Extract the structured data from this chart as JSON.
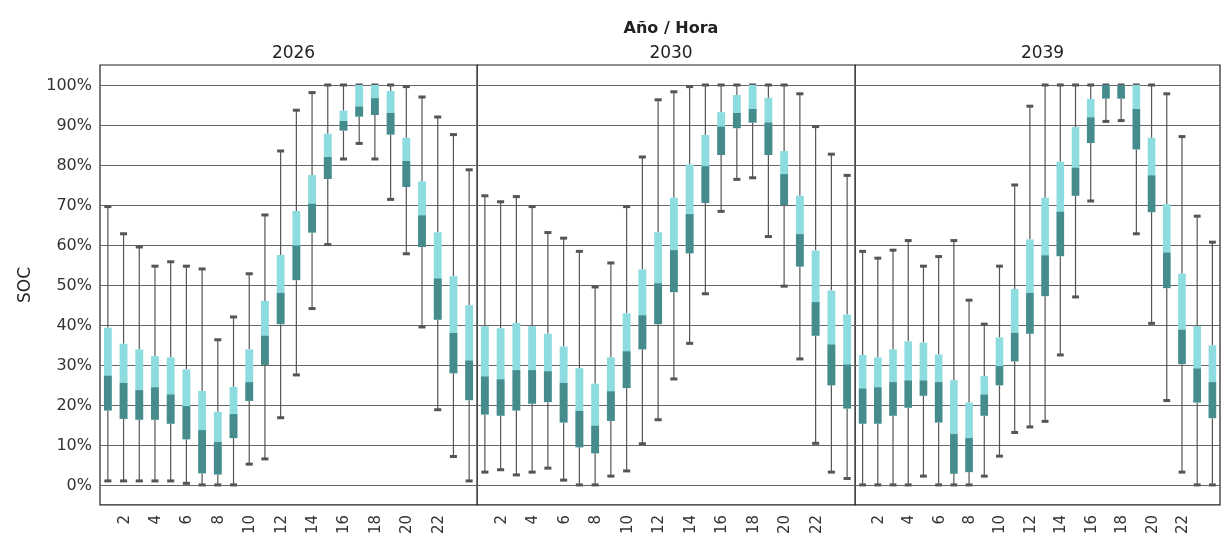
{
  "chart_data": [
    {
      "type": "box",
      "title": "2026",
      "ylabel": "SOC",
      "categories": [
        null,
        "2",
        null,
        "4",
        null,
        "6",
        null,
        "8",
        null,
        "10",
        null,
        "12",
        null,
        "14",
        null,
        "16",
        null,
        "18",
        null,
        "20",
        null,
        "22",
        null,
        null
      ],
      "color": "#8ddcdf",
      "ylim": [
        -5,
        105
      ],
      "yticks": [
        {
          "value": 0,
          "label": "0%"
        },
        {
          "value": 10,
          "label": "10%"
        },
        {
          "value": 20,
          "label": "20%"
        },
        {
          "value": 30,
          "label": "30%"
        },
        {
          "value": 40,
          "label": "40%"
        },
        {
          "value": 50,
          "label": "50%"
        },
        {
          "value": 60,
          "label": "60%"
        },
        {
          "value": 70,
          "label": "70%"
        },
        {
          "value": 80,
          "label": "80%"
        },
        {
          "value": 90,
          "label": "90%"
        },
        {
          "value": 100,
          "label": "100%"
        }
      ],
      "grid": "y",
      "boxes": [
        {
          "low": 1,
          "q1": 18.6,
          "median": 27.3,
          "q3": 39.3,
          "high": 69.6
        },
        {
          "low": 1,
          "q1": 16.5,
          "median": 25.5,
          "q3": 35.3,
          "high": 62.8
        },
        {
          "low": 1,
          "q1": 16.3,
          "median": 23.7,
          "q3": 33.9,
          "high": 59.5
        },
        {
          "low": 1,
          "q1": 16.3,
          "median": 24.4,
          "q3": 32.2,
          "high": 54.7
        },
        {
          "low": 1,
          "q1": 15.3,
          "median": 22.6,
          "q3": 31.9,
          "high": 55.8
        },
        {
          "low": 0.4,
          "q1": 11.4,
          "median": 19.7,
          "q3": 28.9,
          "high": 54.7
        },
        {
          "low": 0,
          "q1": 2.9,
          "median": 13.7,
          "q3": 23.5,
          "high": 54
        },
        {
          "low": 0,
          "q1": 2.6,
          "median": 10.7,
          "q3": 18.3,
          "high": 36.3
        },
        {
          "low": 0,
          "q1": 11.7,
          "median": 17.7,
          "q3": 24.5,
          "high": 42
        },
        {
          "low": 5.2,
          "q1": 21,
          "median": 25.7,
          "q3": 33.9,
          "high": 52.8
        },
        {
          "low": 6.5,
          "q1": 30,
          "median": 37.3,
          "q3": 46,
          "high": 67.5
        },
        {
          "low": 16.8,
          "q1": 40.2,
          "median": 48,
          "q3": 57.5,
          "high": 83.5
        },
        {
          "low": 27.5,
          "q1": 51.2,
          "median": 59.9,
          "q3": 68.5,
          "high": 93.7
        },
        {
          "low": 44.1,
          "q1": 63.1,
          "median": 70.3,
          "q3": 77.5,
          "high": 98.1
        },
        {
          "low": 60.1,
          "q1": 76.5,
          "median": 82,
          "q3": 87.8,
          "high": 100
        },
        {
          "low": 81.5,
          "q1": 88.6,
          "median": 91,
          "q3": 93.6,
          "high": 100
        },
        {
          "low": 85.4,
          "q1": 92.1,
          "median": 94.6,
          "q3": 100,
          "high": 100
        },
        {
          "low": 81.5,
          "q1": 92.5,
          "median": 96.7,
          "q3": 100,
          "high": 100
        },
        {
          "low": 71.4,
          "q1": 87.6,
          "median": 93,
          "q3": 98.5,
          "high": 100
        },
        {
          "low": 57.8,
          "q1": 74.5,
          "median": 81,
          "q3": 86.8,
          "high": 99.6
        },
        {
          "low": 39.5,
          "q1": 59.5,
          "median": 67.4,
          "q3": 75.9,
          "high": 97
        },
        {
          "low": 18.8,
          "q1": 41.3,
          "median": 51.6,
          "q3": 63.2,
          "high": 92
        },
        {
          "low": 7.1,
          "q1": 27.9,
          "median": 38,
          "q3": 52.2,
          "high": 87.6
        },
        {
          "low": 1,
          "q1": 21.2,
          "median": 31.1,
          "q3": 44.9,
          "high": 78.8
        }
      ]
    },
    {
      "type": "box",
      "title": "2030",
      "xlabel": "Año / Hora",
      "tick_labels": "x",
      "categories": [
        null,
        "2",
        null,
        "4",
        null,
        "6",
        null,
        "8",
        null,
        "10",
        null,
        "12",
        null,
        "14",
        null,
        "16",
        null,
        "18",
        null,
        "20",
        null,
        "22",
        null,
        null
      ],
      "color": "#8ddcdf",
      "ylim": [
        -5,
        105
      ],
      "yticks": [
        0,
        10,
        20,
        30,
        40,
        50,
        60,
        70,
        80,
        90,
        100
      ],
      "grid": "y",
      "boxes": [
        {
          "low": 3.2,
          "q1": 17.6,
          "median": 27.1,
          "q3": 39.7,
          "high": 72.3
        },
        {
          "low": 3.8,
          "q1": 17.3,
          "median": 26.4,
          "q3": 39.2,
          "high": 70.8
        },
        {
          "low": 2.5,
          "q1": 18.6,
          "median": 28.7,
          "q3": 40.5,
          "high": 72.1
        },
        {
          "low": 3.2,
          "q1": 20.3,
          "median": 28.7,
          "q3": 39.7,
          "high": 69.6
        },
        {
          "low": 4.2,
          "q1": 20.7,
          "median": 28.4,
          "q3": 37.8,
          "high": 63.1
        },
        {
          "low": 1.2,
          "q1": 15.6,
          "median": 25.5,
          "q3": 34.6,
          "high": 61.7
        },
        {
          "low": 0,
          "q1": 9.4,
          "median": 18.5,
          "q3": 29.2,
          "high": 58.4
        },
        {
          "low": 0,
          "q1": 7.9,
          "median": 14.8,
          "q3": 25.3,
          "high": 49.5
        },
        {
          "low": 2.2,
          "q1": 16,
          "median": 23.4,
          "q3": 31.9,
          "high": 55.5
        },
        {
          "low": 3.5,
          "q1": 24.2,
          "median": 33.4,
          "q3": 42.9,
          "high": 69.6
        },
        {
          "low": 10.3,
          "q1": 33.9,
          "median": 42.4,
          "q3": 53.9,
          "high": 82
        },
        {
          "low": 16.3,
          "q1": 40.2,
          "median": 50.4,
          "q3": 63.2,
          "high": 96.3
        },
        {
          "low": 26.5,
          "q1": 48.2,
          "median": 58.7,
          "q3": 71.8,
          "high": 98.3
        },
        {
          "low": 35.4,
          "q1": 57.9,
          "median": 67.7,
          "q3": 80.1,
          "high": 99.6
        },
        {
          "low": 47.8,
          "q1": 70.5,
          "median": 79.7,
          "q3": 87.5,
          "high": 100
        },
        {
          "low": 68.4,
          "q1": 82.5,
          "median": 89.6,
          "q3": 93.2,
          "high": 100
        },
        {
          "low": 76.4,
          "q1": 89.2,
          "median": 93,
          "q3": 97.5,
          "high": 100
        },
        {
          "low": 76.8,
          "q1": 90.6,
          "median": 94,
          "q3": 100,
          "high": 100
        },
        {
          "low": 62.1,
          "q1": 82.5,
          "median": 90.6,
          "q3": 96.8,
          "high": 100
        },
        {
          "low": 49.7,
          "q1": 70,
          "median": 77.7,
          "q3": 83.5,
          "high": 100
        },
        {
          "low": 31.5,
          "q1": 54.6,
          "median": 62.7,
          "q3": 72.3,
          "high": 97.8
        },
        {
          "low": 10.4,
          "q1": 37.3,
          "median": 45.7,
          "q3": 58.6,
          "high": 89.6
        },
        {
          "low": 3.2,
          "q1": 24.9,
          "median": 35.1,
          "q3": 48.6,
          "high": 82.7
        },
        {
          "low": 1.6,
          "q1": 19.1,
          "median": 30.1,
          "q3": 42.6,
          "high": 77.4
        }
      ]
    },
    {
      "type": "box",
      "title": "2039",
      "tick_labels": "x",
      "categories": [
        null,
        "2",
        null,
        "4",
        null,
        "6",
        null,
        "8",
        null,
        "10",
        null,
        "12",
        null,
        "14",
        null,
        "16",
        null,
        "18",
        null,
        "20",
        null,
        "22",
        null,
        null
      ],
      "color": "#8ddcdf",
      "ylim": [
        -5,
        105
      ],
      "yticks": [
        0,
        10,
        20,
        30,
        40,
        50,
        60,
        70,
        80,
        90,
        100
      ],
      "grid": "y",
      "boxes": [
        {
          "low": 0,
          "q1": 15.3,
          "median": 24.1,
          "q3": 32.5,
          "high": 58.4
        },
        {
          "low": 0,
          "q1": 15.3,
          "median": 24.4,
          "q3": 31.9,
          "high": 56.7
        },
        {
          "low": 0,
          "q1": 17.3,
          "median": 25.7,
          "q3": 33.9,
          "high": 58.7
        },
        {
          "low": 0,
          "q1": 19.3,
          "median": 26.1,
          "q3": 35.9,
          "high": 61.1
        },
        {
          "low": 2.2,
          "q1": 22.3,
          "median": 26.1,
          "q3": 35.6,
          "high": 54.7
        },
        {
          "low": 0,
          "q1": 15.6,
          "median": 25.7,
          "q3": 32.6,
          "high": 57.1
        },
        {
          "low": 0,
          "q1": 2.8,
          "median": 12.7,
          "q3": 26.2,
          "high": 61.1
        },
        {
          "low": 0,
          "q1": 3.2,
          "median": 11.7,
          "q3": 20.6,
          "high": 46.2
        },
        {
          "low": 2.2,
          "q1": 17.3,
          "median": 22.6,
          "q3": 27.2,
          "high": 40.2
        },
        {
          "low": 7.2,
          "q1": 24.9,
          "median": 29.7,
          "q3": 36.9,
          "high": 54.7
        },
        {
          "low": 13.1,
          "q1": 30.9,
          "median": 38,
          "q3": 49,
          "high": 75
        },
        {
          "low": 14.5,
          "q1": 37.8,
          "median": 48,
          "q3": 61.4,
          "high": 94.7
        },
        {
          "low": 15.9,
          "q1": 47.2,
          "median": 57.4,
          "q3": 71.8,
          "high": 100
        },
        {
          "low": 32.5,
          "q1": 57.2,
          "median": 68.3,
          "q3": 80.8,
          "high": 100
        },
        {
          "low": 47,
          "q1": 72.3,
          "median": 79.3,
          "q3": 89.5,
          "high": 100
        },
        {
          "low": 71,
          "q1": 85.5,
          "median": 91.9,
          "q3": 96.5,
          "high": 100
        },
        {
          "low": 90.9,
          "q1": 96.6,
          "median": 100,
          "q3": 100,
          "high": 100
        },
        {
          "low": 91.1,
          "q1": 96.6,
          "median": 100,
          "q3": 100,
          "high": 100
        },
        {
          "low": 62.8,
          "q1": 83.9,
          "median": 94,
          "q3": 100,
          "high": 100
        },
        {
          "low": 40.4,
          "q1": 68.2,
          "median": 77.4,
          "q3": 86.8,
          "high": 100
        },
        {
          "low": 21.1,
          "q1": 49.2,
          "median": 58.1,
          "q3": 70.2,
          "high": 97.8
        },
        {
          "low": 3.2,
          "q1": 30.2,
          "median": 38.8,
          "q3": 52.8,
          "high": 87.1
        },
        {
          "low": 0,
          "q1": 20.6,
          "median": 29.1,
          "q3": 39.7,
          "high": 67.2
        },
        {
          "low": 0,
          "q1": 16.7,
          "median": 25.7,
          "q3": 34.9,
          "high": 60.7
        }
      ]
    }
  ]
}
